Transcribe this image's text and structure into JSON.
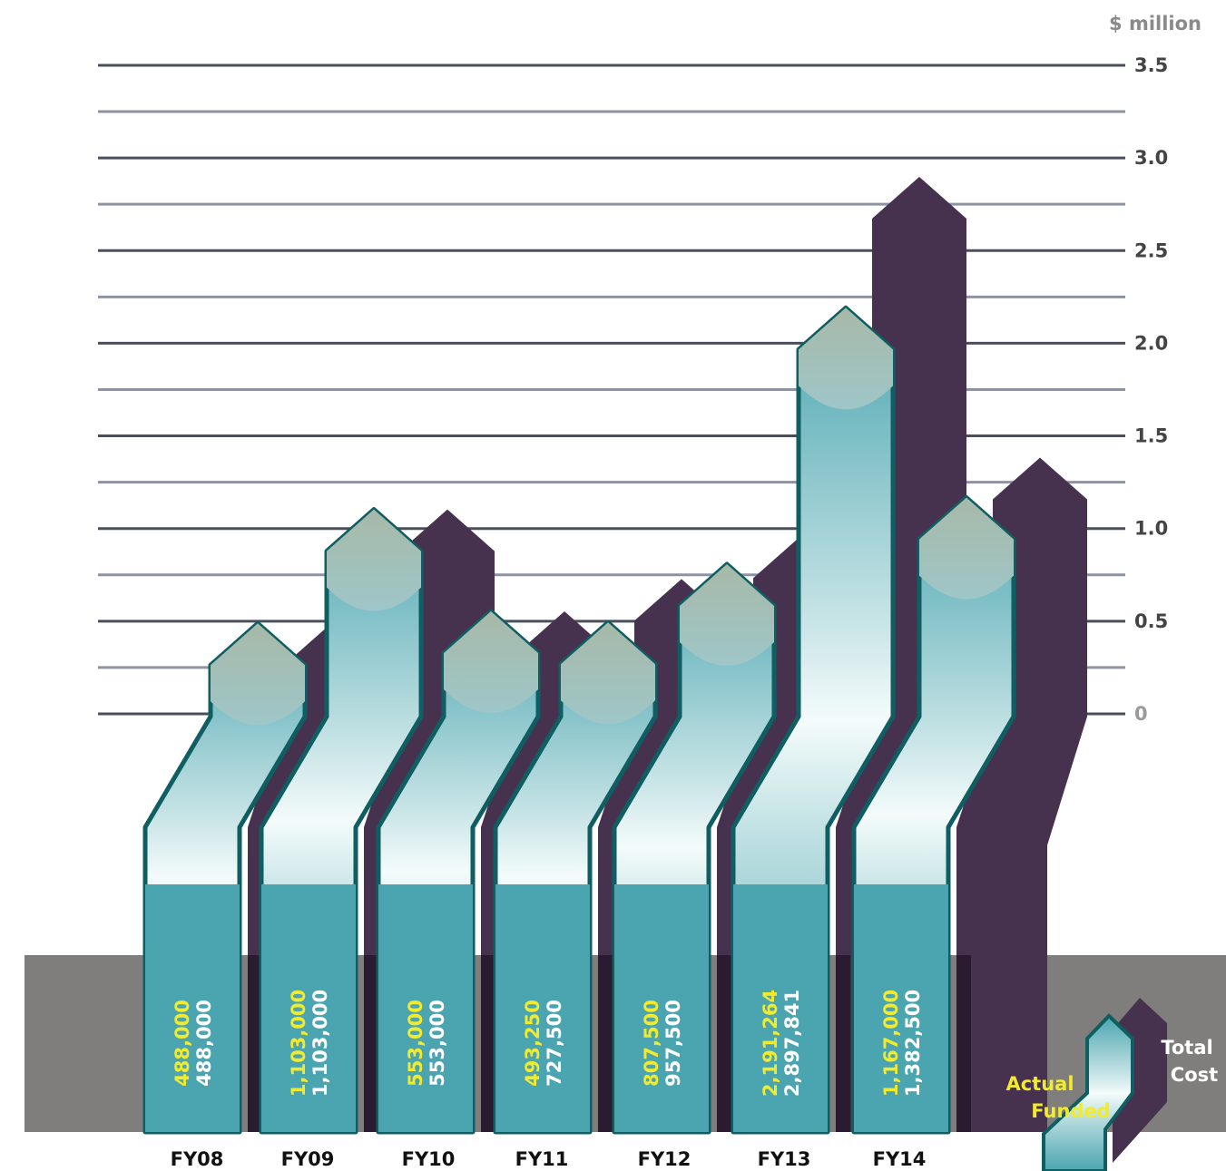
{
  "chart_data": {
    "type": "bar",
    "unit_label": "$ million",
    "categories": [
      "FY08",
      "FY09",
      "FY10",
      "FY11",
      "FY12",
      "FY13",
      "FY14"
    ],
    "series": [
      {
        "name": "Actual Funded",
        "values": [
          488000,
          1103000,
          553000,
          493250,
          807500,
          2191264,
          1167000
        ],
        "labels": [
          "488,000",
          "1,103,000",
          "553,000",
          "493,250",
          "807,500",
          "2,191,264",
          "1,167,000"
        ]
      },
      {
        "name": "Total Cost",
        "values": [
          488000,
          1103000,
          553000,
          727500,
          957500,
          2897841,
          1382500
        ],
        "labels": [
          "488,000",
          "1,103,000",
          "553,000",
          "727,500",
          "957,500",
          "2,897,841",
          "1,382,500"
        ]
      }
    ],
    "y_ticks": [
      "0",
      "0.5",
      "1.0",
      "1.5",
      "2.0",
      "2.5",
      "3.0",
      "3.5"
    ],
    "ylim": [
      0,
      3.5
    ],
    "grid": true,
    "legend": {
      "position": "bottom-right",
      "actual_label": "Actual Funded",
      "total_label": "Total Cost"
    },
    "colors": {
      "actual": "#4aa5b0",
      "actual_edge": "#0f5e62",
      "total": "#46324f",
      "actual_text": "#f2ea2e",
      "total_text": "#ffffff",
      "band": "#7f7e7d",
      "grid_major": "#4a4f5e",
      "grid_minor": "#8d93a1",
      "tick_major": "#444444",
      "tick_zero": "#9a9a9a"
    }
  }
}
